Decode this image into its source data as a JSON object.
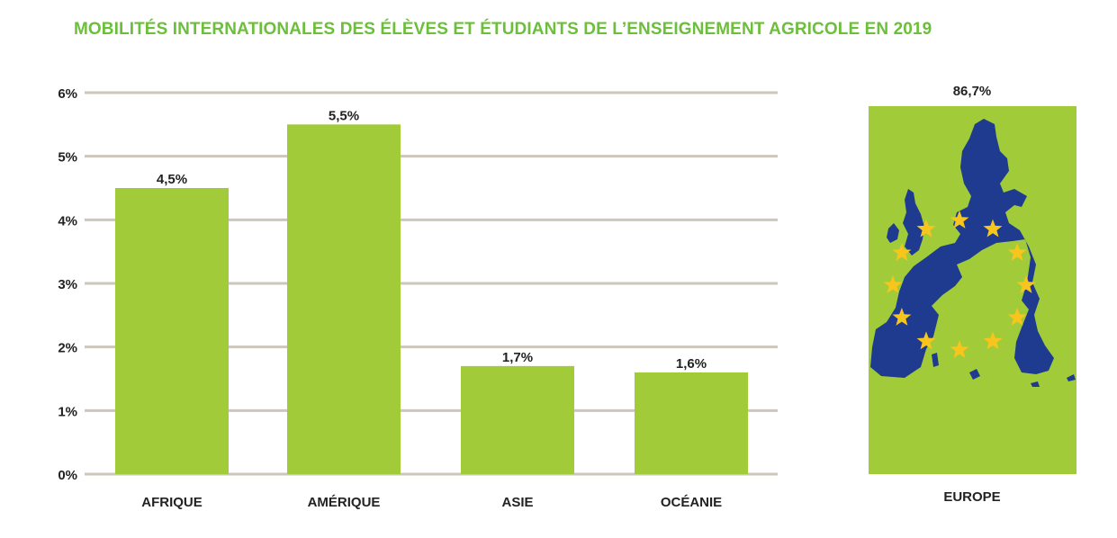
{
  "title": "MOBILITÉS INTERNATIONALES DES ÉLÈVES ET ÉTUDIANTS DE L’ENSEIGNEMENT AGRICOLE EN 2019",
  "colors": {
    "title": "#6cbf3a",
    "bar": "#a2cb3a",
    "grid": "#cdc6bb",
    "text": "#222222",
    "europe_map": "#1f3b8f",
    "stars": "#f7c51b"
  },
  "chart_data": [
    {
      "type": "bar",
      "categories": [
        "AFRIQUE",
        "AMÉRIQUE",
        "ASIE",
        "OCÉANIE"
      ],
      "values": [
        4.5,
        5.5,
        1.7,
        1.6
      ],
      "value_labels": [
        "4,5%",
        "5,5%",
        "1,7%",
        "1,6%"
      ],
      "ylim": [
        0,
        6
      ],
      "yticks": [
        0,
        1,
        2,
        3,
        4,
        5,
        6
      ],
      "ytick_labels": [
        "0%",
        "1%",
        "2%",
        "3%",
        "4%",
        "5%",
        "6%"
      ],
      "grid": true
    },
    {
      "type": "bar",
      "categories": [
        "EUROPE"
      ],
      "values": [
        86.7
      ],
      "value_labels": [
        "86,7%"
      ],
      "icon": "eu-map-with-stars-icon"
    }
  ]
}
